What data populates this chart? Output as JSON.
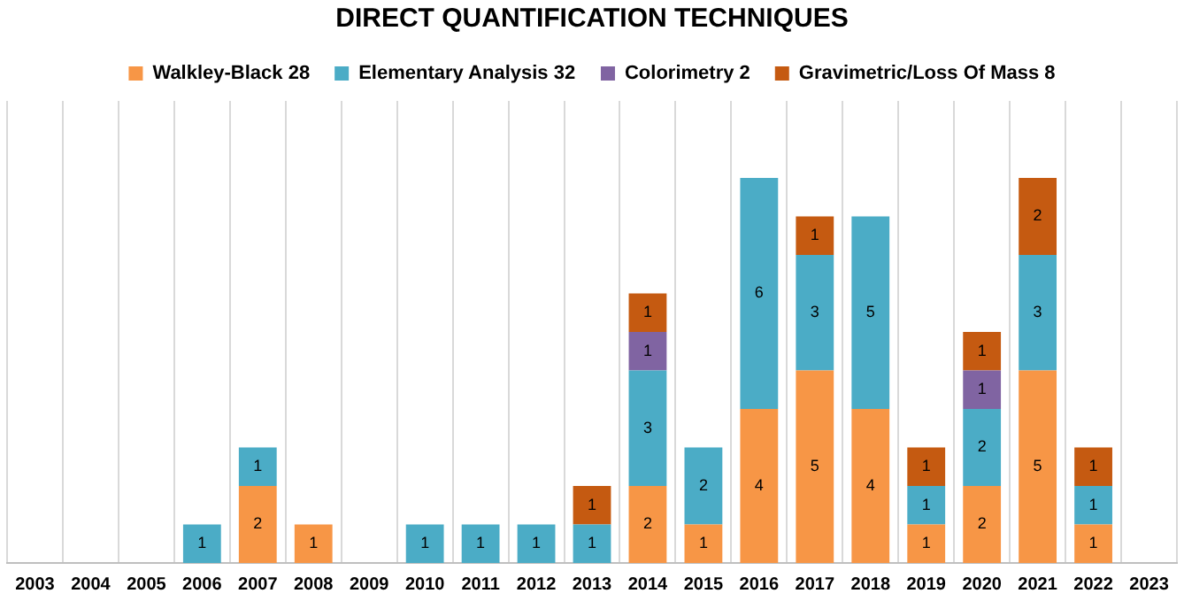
{
  "chart_data": {
    "type": "bar",
    "title": "DIRECT QUANTIFICATION TECHNIQUES",
    "stacked": true,
    "data_labels": true,
    "grid": "x",
    "legend": "top",
    "tick_labels": "x",
    "ylim": [
      0,
      12
    ],
    "categories": [
      "2003",
      "2004",
      "2005",
      "2006",
      "2007",
      "2008",
      "2009",
      "2010",
      "2011",
      "2012",
      "2013",
      "2014",
      "2015",
      "2016",
      "2017",
      "2018",
      "2019",
      "2020",
      "2021",
      "2022",
      "2023"
    ],
    "series": [
      {
        "name": "Walkley-Black 28",
        "color": "#f79646",
        "values": [
          null,
          null,
          null,
          null,
          2,
          1,
          null,
          null,
          null,
          null,
          null,
          2,
          1,
          4,
          5,
          4,
          1,
          2,
          5,
          1,
          null
        ]
      },
      {
        "name": "Elementary Analysis 32",
        "color": "#4bacc6",
        "values": [
          null,
          null,
          null,
          1,
          1,
          null,
          null,
          1,
          1,
          1,
          1,
          3,
          2,
          6,
          3,
          5,
          1,
          2,
          3,
          1,
          null
        ]
      },
      {
        "name": "Colorimetry 2",
        "color": "#8064a2",
        "values": [
          null,
          null,
          null,
          null,
          null,
          null,
          null,
          null,
          null,
          null,
          null,
          1,
          null,
          null,
          null,
          null,
          null,
          1,
          null,
          null,
          null
        ]
      },
      {
        "name": "Gravimetric/Loss Of Mass 8",
        "color": "#c55a11",
        "values": [
          null,
          null,
          null,
          null,
          null,
          null,
          null,
          null,
          null,
          null,
          1,
          1,
          null,
          null,
          1,
          null,
          1,
          1,
          2,
          1,
          null
        ]
      }
    ]
  }
}
